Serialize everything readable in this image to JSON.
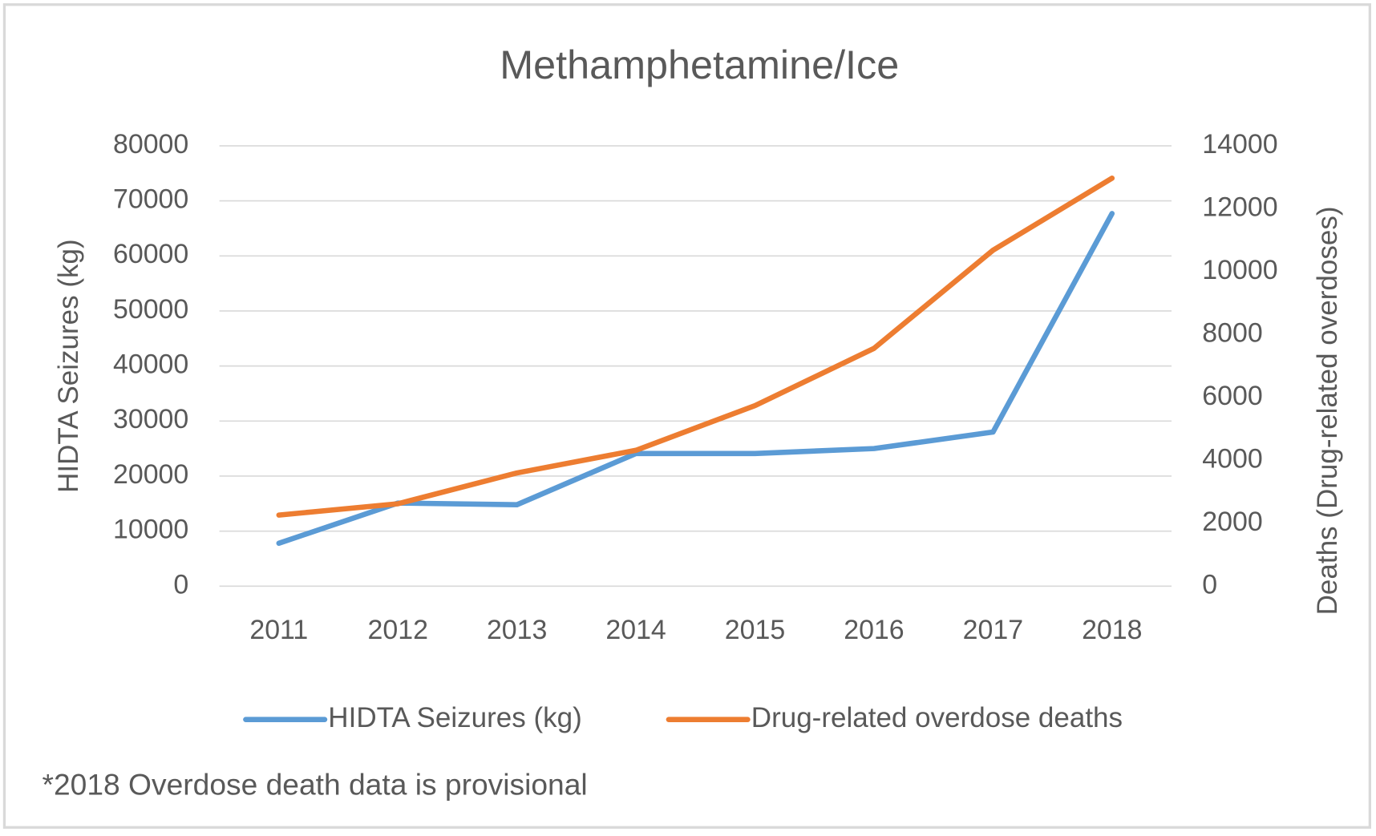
{
  "chart_data": {
    "type": "line",
    "title": "Methamphetamine/Ice",
    "categories": [
      "2011",
      "2012",
      "2013",
      "2014",
      "2015",
      "2016",
      "2017",
      "2018"
    ],
    "series": [
      {
        "name": "HIDTA Seizures (kg)",
        "color": "#5b9bd5",
        "values": [
          7800,
          15100,
          14800,
          24100,
          24100,
          25000,
          28000,
          67700
        ]
      },
      {
        "name": "Drug-related overdose deaths",
        "color": "#ed7d31",
        "axis": "y2",
        "values": [
          2260,
          2620,
          3600,
          4320,
          5740,
          7560,
          10680,
          12970
        ]
      }
    ],
    "ylabel": "HIDTA Seizures (kg)",
    "y2label": "Deaths (Drug-related overdoses)",
    "ylim": [
      0,
      80000
    ],
    "yticks": [
      0,
      10000,
      20000,
      30000,
      40000,
      50000,
      60000,
      70000,
      80000
    ],
    "y2lim": [
      0,
      14000
    ],
    "y2ticks": [
      0,
      2000,
      4000,
      6000,
      8000,
      10000,
      12000,
      14000
    ],
    "grid": true,
    "legend": "bottom",
    "note": "*2018 Overdose death data is provisional"
  }
}
